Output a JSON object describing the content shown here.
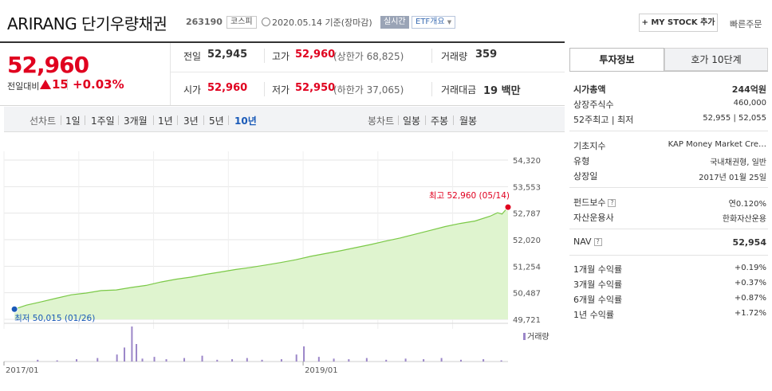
{
  "header": {
    "stock_name": "ARIRANG 단기우량채권",
    "stock_code": "263190",
    "market": "코스피",
    "date_text": "2020.05.14 기준(장마감)",
    "realtime": "실시간",
    "etf_overview": "ETF개요",
    "mystock_button": "+ MY STOCK 추가",
    "quick_order": "빠른주문"
  },
  "summary": {
    "current_price": "52,960",
    "change_label": "전일대비",
    "change_value": "15",
    "change_rate": "+0.03%",
    "prev_close_label": "전일",
    "prev_close": "52,945",
    "high_label": "고가",
    "high": "52,960",
    "upper_limit": "(상한가 68,825)",
    "volume_label": "거래량",
    "volume": "359",
    "open_label": "시가",
    "open": "52,960",
    "low_label": "저가",
    "low": "52,950",
    "lower_limit": "(하한가 37,065)",
    "amount_label": "거래대금",
    "amount": "19 백만"
  },
  "periods": {
    "line_chart": "선차트",
    "items": [
      "1일",
      "1주일",
      "3개월",
      "1년",
      "3년",
      "5년",
      "10년"
    ],
    "active": "10년",
    "candle_chart": "봉차트",
    "candle_items": [
      "일봉",
      "주봉",
      "월봉"
    ]
  },
  "chart_data": {
    "type": "area",
    "y_ticks": [
      "54,320",
      "53,553",
      "52,787",
      "52,020",
      "51,254",
      "50,487",
      "49,721"
    ],
    "ylim": [
      49721,
      54320
    ],
    "x_labels": [
      "2017/01",
      "2019/01"
    ],
    "x_range": [
      "2017-01",
      "2020-05"
    ],
    "series": [
      {
        "values": [
          [
            2017.07,
            50015
          ],
          [
            2017.15,
            50130
          ],
          [
            2017.25,
            50230
          ],
          [
            2017.35,
            50330
          ],
          [
            2017.45,
            50430
          ],
          [
            2017.55,
            50480
          ],
          [
            2017.65,
            50550
          ],
          [
            2017.75,
            50570
          ],
          [
            2017.85,
            50640
          ],
          [
            2017.95,
            50700
          ],
          [
            2018.05,
            50800
          ],
          [
            2018.15,
            50880
          ],
          [
            2018.25,
            50940
          ],
          [
            2018.35,
            51020
          ],
          [
            2018.45,
            51090
          ],
          [
            2018.55,
            51160
          ],
          [
            2018.65,
            51220
          ],
          [
            2018.75,
            51290
          ],
          [
            2018.85,
            51360
          ],
          [
            2018.95,
            51440
          ],
          [
            2019.05,
            51540
          ],
          [
            2019.15,
            51620
          ],
          [
            2019.25,
            51700
          ],
          [
            2019.35,
            51790
          ],
          [
            2019.45,
            51880
          ],
          [
            2019.55,
            51980
          ],
          [
            2019.65,
            52070
          ],
          [
            2019.75,
            52180
          ],
          [
            2019.85,
            52290
          ],
          [
            2019.95,
            52400
          ],
          [
            2020.05,
            52490
          ],
          [
            2020.15,
            52560
          ],
          [
            2020.25,
            52700
          ],
          [
            2020.3,
            52800
          ],
          [
            2020.33,
            52760
          ],
          [
            2020.37,
            52960
          ]
        ]
      }
    ],
    "high_annotation": "최고 52,960 (05/14)",
    "low_annotation": "최저 50,015 (01/26)",
    "volume_legend": "거래량",
    "volume": {
      "x": [
        2017.22,
        2017.35,
        2017.48,
        2017.62,
        2017.75,
        2017.8,
        2017.85,
        2017.88,
        2017.92,
        2018.0,
        2018.08,
        2018.2,
        2018.32,
        2018.42,
        2018.52,
        2018.62,
        2018.72,
        2018.85,
        2018.95,
        2019.0,
        2019.1,
        2019.2,
        2019.3,
        2019.42,
        2019.55,
        2019.68,
        2019.8,
        2019.92,
        2020.05,
        2020.2,
        2020.32
      ],
      "values": [
        3,
        2,
        4,
        6,
        12,
        24,
        60,
        30,
        5,
        8,
        4,
        6,
        10,
        3,
        4,
        6,
        3,
        4,
        12,
        26,
        8,
        5,
        4,
        6,
        3,
        5,
        4,
        6,
        3,
        4,
        2
      ]
    },
    "grid": true,
    "grid_color": "#e6e6e6",
    "line_color": "#7bc947",
    "fill_color": "#dff4cf",
    "volume_color": "#9b86c8"
  },
  "invest_info": {
    "tab_invest": "투자정보",
    "tab_ask": "호가 10단계",
    "rows1": [
      {
        "label": "시가총액",
        "value": "244억원"
      },
      {
        "label": "상장주식수",
        "value": "460,000"
      },
      {
        "label": "52주최고 | 최저",
        "value": "52,955 | 52,055"
      }
    ],
    "rows2": [
      {
        "label": "기초지수",
        "value": "KAP Money Market Cre…"
      },
      {
        "label": "유형",
        "value": "국내채권형, 일반"
      },
      {
        "label": "상장일",
        "value": "2017년 01월 25일"
      }
    ],
    "rows3": [
      {
        "label": "펀드보수",
        "value": "연0.120%"
      },
      {
        "label": "자산운용사",
        "value": "한화자산운용"
      }
    ],
    "nav_label": "NAV",
    "nav_value": "52,954",
    "returns": [
      {
        "label": "1개월 수익률",
        "value": "+0.19%"
      },
      {
        "label": "3개월 수익률",
        "value": "+0.37%"
      },
      {
        "label": "6개월 수익률",
        "value": "+0.87%"
      },
      {
        "label": "1년 수익률",
        "value": "+1.72%"
      }
    ]
  },
  "colors": {
    "up": "#e0001f",
    "accent": "#1a5ab8"
  }
}
